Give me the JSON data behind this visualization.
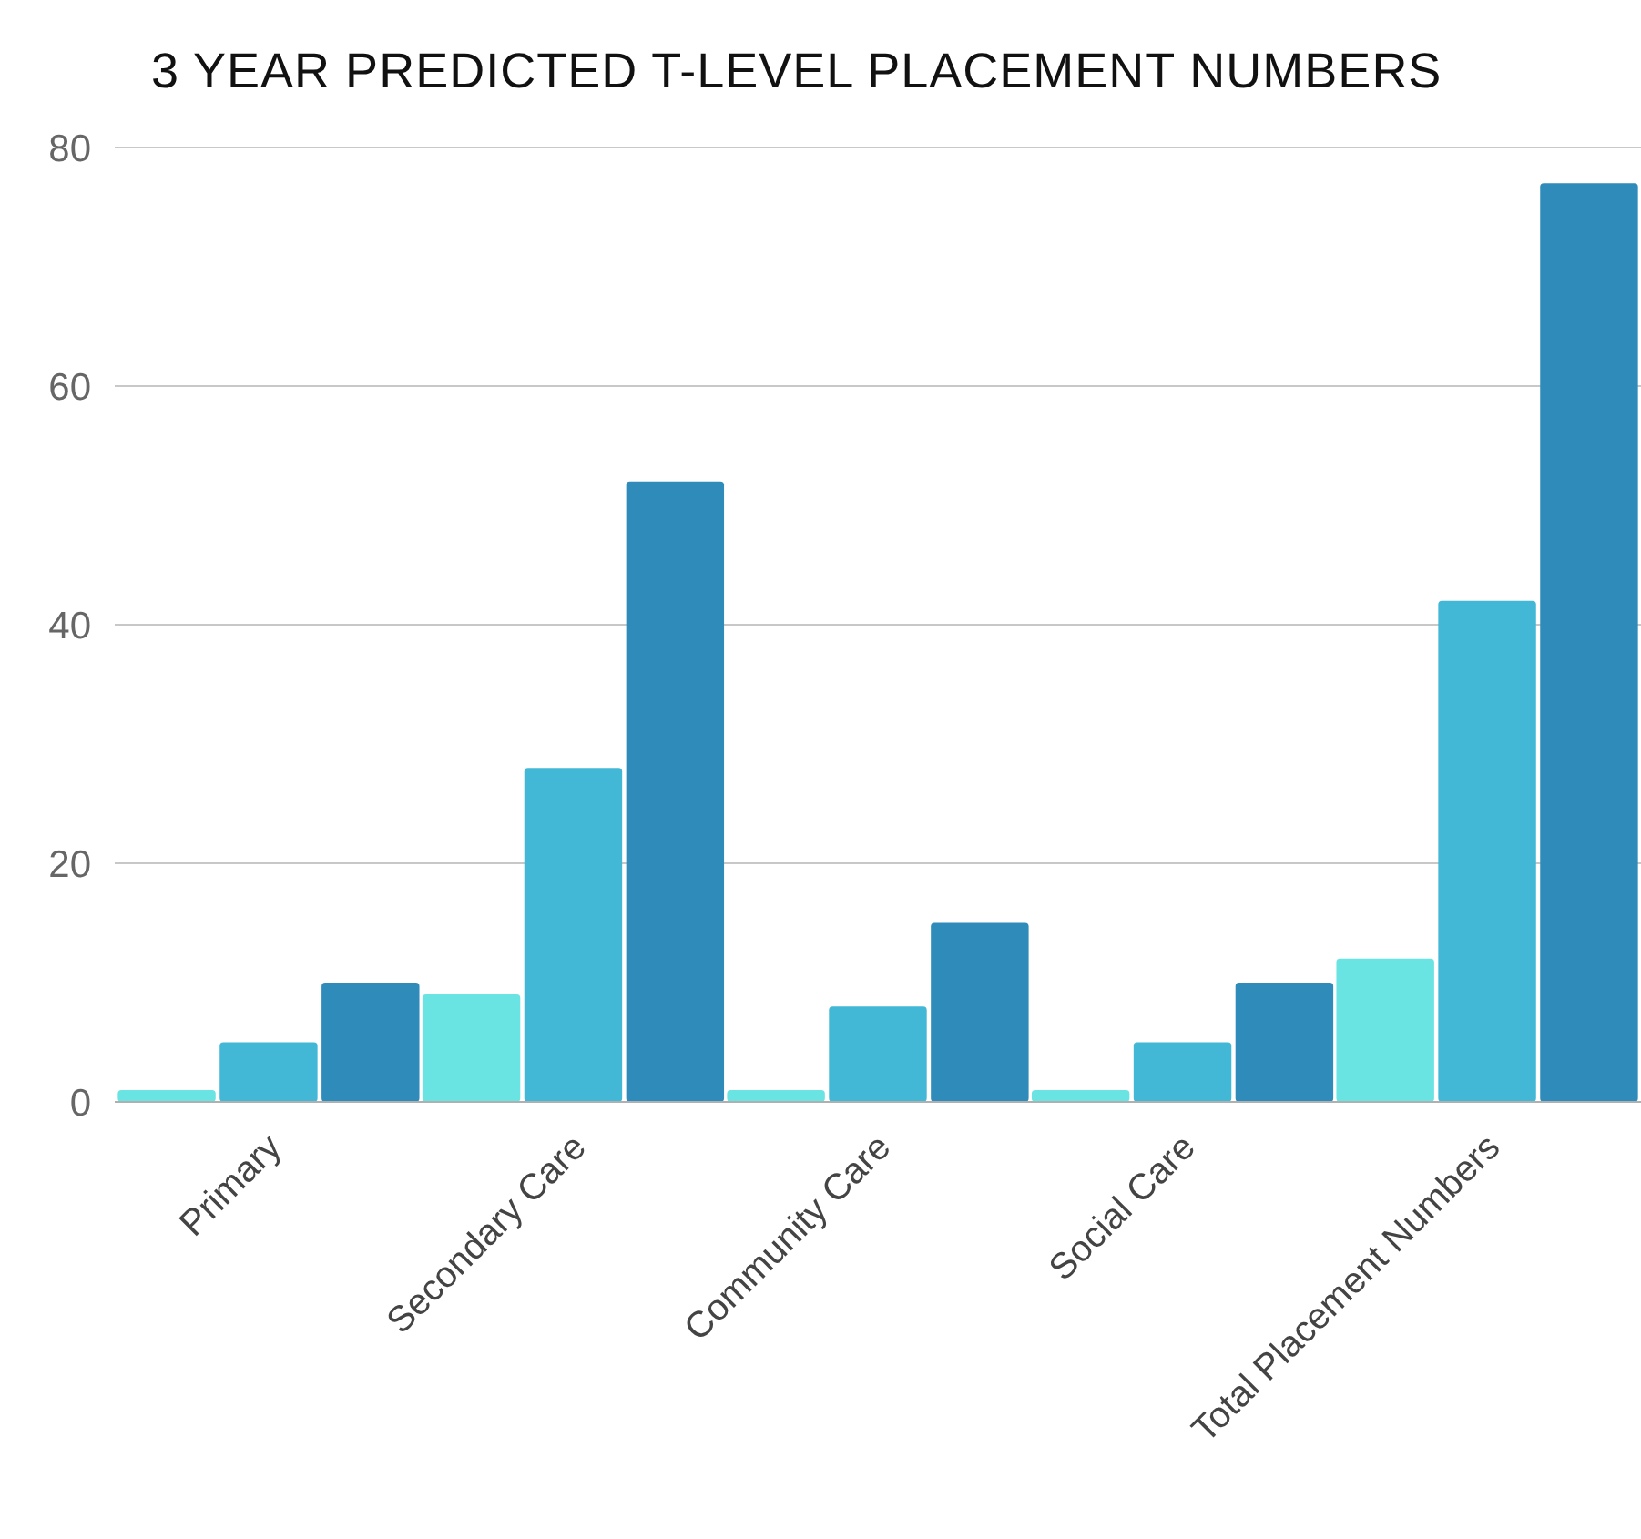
{
  "chart_data": {
    "type": "bar",
    "title": "3 YEAR PREDICTED T-LEVEL PLACEMENT NUMBERS",
    "categories": [
      "Primary",
      "Secondary Care",
      "Community Care",
      "Social Care",
      "Total Placement Numbers"
    ],
    "series": [
      {
        "color": "#6ae3e3",
        "values": [
          1,
          9,
          1,
          1,
          12
        ]
      },
      {
        "color": "#42b8d6",
        "values": [
          5,
          28,
          8,
          5,
          42
        ]
      },
      {
        "color": "#2e8bba",
        "values": [
          10,
          52,
          15,
          10,
          77
        ]
      }
    ],
    "ylim": [
      0,
      80
    ],
    "yticks": [
      0,
      20,
      40,
      60,
      80
    ],
    "grid": "y"
  }
}
